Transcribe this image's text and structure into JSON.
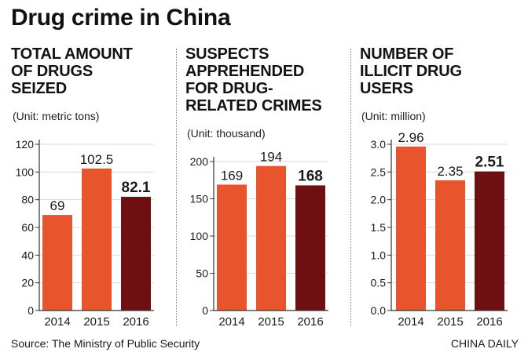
{
  "title": "Drug crime in China",
  "source": "Source: The Ministry of Public Security",
  "credit": "CHINA DAILY",
  "colors": {
    "bar_light": "#e8542b",
    "bar_dark": "#6e0f12",
    "axis": "#333333",
    "grid": "#d9d9d9"
  },
  "chart_data": [
    {
      "type": "bar",
      "title": "TOTAL AMOUNT\nOF DRUGS\nSEIZED",
      "unit": "(Unit: metric tons)",
      "categories": [
        "2014",
        "2015",
        "2016"
      ],
      "values": [
        69,
        102.5,
        82.1
      ],
      "value_labels": [
        "69",
        "102.5",
        "82.1"
      ],
      "ylim": [
        0,
        120
      ],
      "yticks": [
        "0",
        "20",
        "40",
        "60",
        "80",
        "100",
        "120"
      ],
      "highlight_last": true,
      "grid": true
    },
    {
      "type": "bar",
      "title": "SUSPECTS\nAPPREHENDED\nFOR DRUG-\nRELATED CRIMES",
      "unit": "(Unit: thousand)",
      "categories": [
        "2014",
        "2015",
        "2016"
      ],
      "values": [
        169,
        194,
        168
      ],
      "value_labels": [
        "169",
        "194",
        "168"
      ],
      "ylim": [
        0,
        200
      ],
      "yticks": [
        "0",
        "50",
        "100",
        "150",
        "200"
      ],
      "highlight_last": true,
      "grid": true
    },
    {
      "type": "bar",
      "title": "NUMBER OF\nILLICIT DRUG\nUSERS",
      "unit": "(Unit: million)",
      "categories": [
        "2014",
        "2015",
        "2016"
      ],
      "values": [
        2.96,
        2.35,
        2.51
      ],
      "value_labels": [
        "2.96",
        "2.35",
        "2.51"
      ],
      "ylim": [
        0,
        3.0
      ],
      "yticks": [
        "0.0",
        "0.5",
        "1.0",
        "1.5",
        "2.0",
        "2.5",
        "3.0"
      ],
      "highlight_last": true,
      "grid": true
    }
  ]
}
